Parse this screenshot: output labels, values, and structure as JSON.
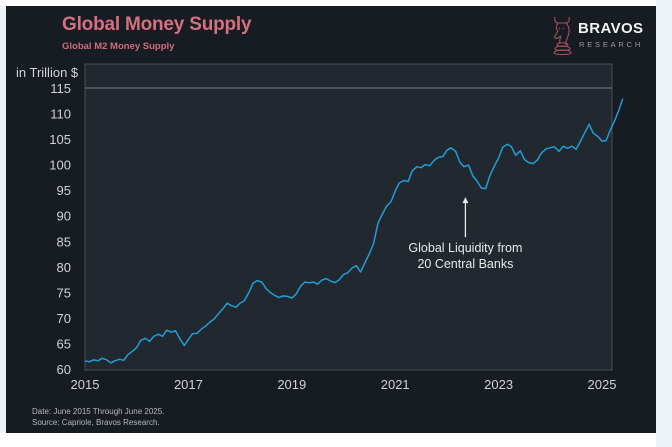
{
  "header": {
    "title": "Global Money Supply",
    "subtitle": "Global M2 Money Supply"
  },
  "logo": {
    "name": "BRAVOS",
    "tagline": "RESEARCH",
    "icon": "bull-chess-knight-icon"
  },
  "footnote": {
    "date_line": "Date: June 2015 Through June 2025.",
    "source_line": "Source: Capriole, Bravos Research."
  },
  "colors": {
    "background": "#171b22",
    "plot_background": "#222830",
    "line": "#1f9fd6",
    "title": "#d4707f",
    "axis_text": "#cfd2d8",
    "annotation": "#e8e8e8"
  },
  "chart_data": {
    "type": "line",
    "title": "Global Money Supply",
    "subtitle": "Global M2 Money Supply",
    "xlabel": "",
    "ylabel": "in Trillion $",
    "xlim": [
      2015,
      2025
    ],
    "ylim": [
      60,
      115
    ],
    "x_ticks": [
      "2015",
      "2017",
      "2019",
      "2021",
      "2023",
      "2025"
    ],
    "x_tick_values": [
      2015,
      2017,
      2019,
      2021,
      2023,
      2025
    ],
    "y_ticks": [
      "60",
      "65",
      "70",
      "75",
      "80",
      "85",
      "90",
      "95",
      "100",
      "105",
      "110",
      "115"
    ],
    "y_tick_values": [
      60,
      65,
      70,
      75,
      80,
      85,
      90,
      95,
      100,
      105,
      110,
      115
    ],
    "grid": false,
    "reference_line": 115,
    "annotation": {
      "lines": [
        "Global Liquidity from",
        "20 Central Banks"
      ],
      "x": 2022.3,
      "y": 95.2
    },
    "series": [
      {
        "name": "Global M2 Money Supply",
        "x": [
          2015.0,
          2015.08,
          2015.17,
          2015.25,
          2015.33,
          2015.42,
          2015.5,
          2015.58,
          2015.67,
          2015.75,
          2015.83,
          2015.92,
          2016.0,
          2016.08,
          2016.17,
          2016.25,
          2016.33,
          2016.42,
          2016.5,
          2016.58,
          2016.67,
          2016.75,
          2016.83,
          2016.92,
          2017.0,
          2017.08,
          2017.17,
          2017.25,
          2017.33,
          2017.42,
          2017.5,
          2017.58,
          2017.67,
          2017.75,
          2017.83,
          2017.92,
          2018.0,
          2018.08,
          2018.17,
          2018.25,
          2018.33,
          2018.42,
          2018.5,
          2018.58,
          2018.67,
          2018.75,
          2018.83,
          2018.92,
          2019.0,
          2019.08,
          2019.17,
          2019.25,
          2019.33,
          2019.42,
          2019.5,
          2019.58,
          2019.67,
          2019.75,
          2019.83,
          2019.92,
          2020.0,
          2020.08,
          2020.17,
          2020.25,
          2020.33,
          2020.42,
          2020.5,
          2020.58,
          2020.67,
          2020.75,
          2020.83,
          2020.92,
          2021.0,
          2021.08,
          2021.17,
          2021.25,
          2021.33,
          2021.42,
          2021.5,
          2021.58,
          2021.67,
          2021.75,
          2021.83,
          2021.92,
          2022.0,
          2022.08,
          2022.17,
          2022.25,
          2022.33,
          2022.42,
          2022.5,
          2022.58,
          2022.67,
          2022.75,
          2022.83,
          2022.92,
          2023.0,
          2023.08,
          2023.17,
          2023.25,
          2023.33,
          2023.42,
          2023.5,
          2023.58,
          2023.67,
          2023.75,
          2023.83,
          2023.92,
          2024.0,
          2024.08,
          2024.17,
          2024.25,
          2024.33,
          2024.42,
          2024.5,
          2024.58,
          2024.67,
          2024.75,
          2024.83,
          2024.92,
          2025.0,
          2025.08,
          2025.17,
          2025.25,
          2025.33,
          2025.4
        ],
        "values": [
          61.6,
          61.4,
          61.8,
          61.6,
          62.1,
          61.8,
          61.2,
          61.6,
          61.9,
          61.7,
          62.8,
          63.5,
          64.2,
          65.6,
          66.0,
          65.4,
          66.4,
          66.8,
          66.4,
          67.6,
          67.2,
          67.5,
          66.0,
          64.6,
          65.8,
          66.9,
          67.0,
          67.8,
          68.4,
          69.2,
          69.8,
          70.8,
          71.8,
          72.9,
          72.4,
          72.1,
          72.9,
          73.3,
          75.0,
          76.8,
          77.3,
          77.0,
          75.8,
          75.0,
          74.4,
          74.0,
          74.3,
          74.2,
          73.9,
          74.6,
          76.2,
          77.0,
          76.9,
          77.0,
          76.6,
          77.4,
          77.7,
          77.2,
          76.9,
          77.5,
          78.5,
          78.8,
          79.8,
          80.2,
          79.0,
          80.9,
          82.6,
          84.5,
          88.6,
          90.3,
          91.8,
          92.8,
          94.8,
          96.4,
          96.9,
          96.7,
          98.8,
          99.6,
          99.4,
          100.0,
          99.8,
          100.8,
          101.4,
          101.6,
          102.8,
          103.3,
          102.6,
          100.5,
          99.6,
          99.9,
          97.8,
          96.8,
          95.4,
          95.3,
          97.8,
          99.8,
          101.3,
          103.4,
          104.0,
          103.5,
          101.8,
          102.7,
          101.0,
          100.4,
          100.2,
          100.9,
          102.3,
          103.1,
          103.3,
          103.5,
          102.6,
          103.6,
          103.2,
          103.6,
          103.0,
          104.5,
          106.3,
          107.9,
          106.2,
          105.5,
          104.6,
          104.7,
          107.0,
          108.7,
          110.8,
          112.9
        ]
      }
    ]
  }
}
